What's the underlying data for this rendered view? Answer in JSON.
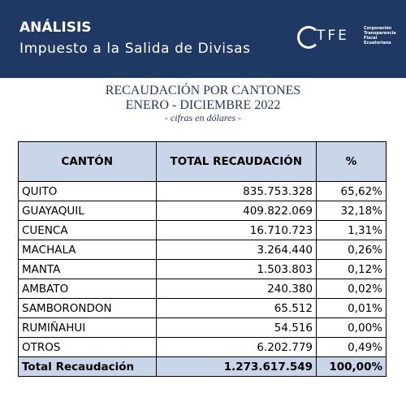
{
  "header": {
    "title": "ANÁLISIS",
    "subtitle": "Impuesto a la Salida de Divisas",
    "logo": {
      "text": "TFE",
      "caption": [
        "Corporación",
        "Transparencia",
        "Fiscal",
        "Ecuatoriana"
      ]
    }
  },
  "titles": [
    "RECAUDACIÓN POR CANTONES",
    "ENERO - DICIEMBRE 2022",
    "- cifras en dólares -"
  ],
  "table": {
    "columns": [
      "CANTÓN",
      "TOTAL RECAUDACIÓN",
      "%"
    ],
    "rows": [
      [
        "QUITO",
        "835.753.328",
        "65,62%"
      ],
      [
        "GUAYAQUIL",
        "409.822.069",
        "32,18%"
      ],
      [
        "CUENCA",
        "16.710.723",
        "1,31%"
      ],
      [
        "MACHALA",
        "3.264.440",
        "0,26%"
      ],
      [
        "MANTA",
        "1.503.803",
        "0,12%"
      ],
      [
        "AMBATO",
        "240.380",
        "0,02%"
      ],
      [
        "SAMBORONDON",
        "65.512",
        "0,01%"
      ],
      [
        "RUMIÑAHUI",
        "54.516",
        "0,00%"
      ],
      [
        "OTROS",
        "6.202.779",
        "0,49%"
      ]
    ],
    "total": [
      "Total Recaudación",
      "1.273.617.549",
      "100,00%"
    ]
  }
}
